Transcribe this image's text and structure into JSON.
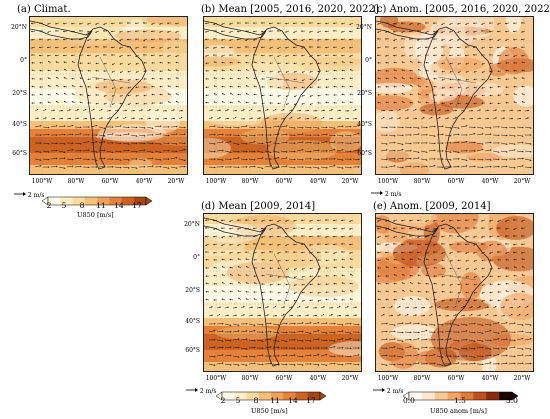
{
  "panels": [
    {
      "id": "a",
      "title": "(a) Climat.",
      "kind": "mean"
    },
    {
      "id": "b",
      "title": "(b) Mean [2005, 2016, 2020, 2022]",
      "kind": "mean"
    },
    {
      "id": "c",
      "title": "(c) Anom. [2005, 2016, 2020, 2022]",
      "kind": "anom"
    },
    {
      "id": "d",
      "title": "(d) Mean [2009, 2014]",
      "kind": "mean"
    },
    {
      "id": "e",
      "title": "(e) Anom. [2009, 2014]",
      "kind": "anom"
    }
  ],
  "lat_labels": [
    "20°N",
    "0°",
    "20°S",
    "40°S",
    "60°S"
  ],
  "lon_labels": [
    "100°W",
    "80°W",
    "60°W",
    "40°W",
    "20°W"
  ],
  "reference_arrow": {
    "label": "2 m/s"
  },
  "colorbar_mean": {
    "ticks": [
      "2",
      "5",
      "8",
      "11",
      "14",
      "17"
    ],
    "label": "U850 [m/s]",
    "colors": [
      "#fffbea",
      "#fdeec7",
      "#f9dba0",
      "#f5c07a",
      "#f0a15a",
      "#e4823c",
      "#cc6322",
      "#a8470f"
    ]
  },
  "colorbar_anom": {
    "ticks": [
      "0.0",
      "1.5",
      "3.0"
    ],
    "label": "U850 anom [m/s]",
    "colors": [
      "#fffbf4",
      "#fde8cf",
      "#f9c994",
      "#f1a463",
      "#e07b3a",
      "#c0521b",
      "#8c2c08",
      "#1a0800"
    ]
  }
}
